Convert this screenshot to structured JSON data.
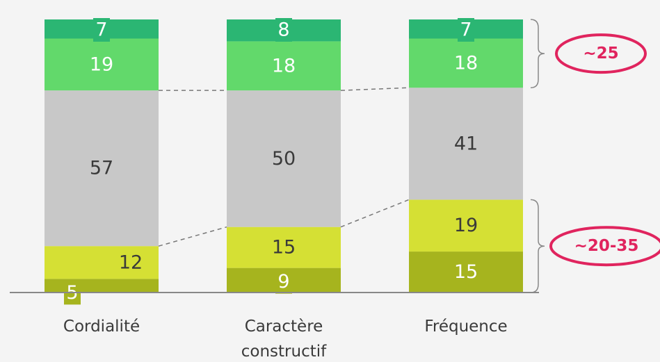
{
  "chart_data": {
    "type": "bar",
    "stacked": true,
    "categories": [
      [
        "Cordialité"
      ],
      [
        "Caractère",
        "constructif"
      ],
      [
        "Fréquence"
      ]
    ],
    "series": [
      {
        "key": "s1",
        "values": [
          5,
          9,
          15
        ],
        "color": "#a6b41e",
        "text_color": "#ffffff"
      },
      {
        "key": "s2",
        "values": [
          12,
          15,
          19
        ],
        "color": "#d5e034",
        "text_color": "#3a3a3a"
      },
      {
        "key": "s3",
        "values": [
          57,
          50,
          41
        ],
        "color": "#c8c8c8",
        "text_color": "#3a3a3a"
      },
      {
        "key": "s4",
        "values": [
          19,
          18,
          18
        ],
        "color": "#62d96b",
        "text_color": "#ffffff"
      },
      {
        "key": "s5",
        "values": [
          7,
          8,
          7
        ],
        "color": "#2bb673",
        "text_color": "#ffffff"
      }
    ],
    "callouts": [
      {
        "text": "~25",
        "brackets_series": [
          "s4",
          "s5"
        ],
        "bar": 2
      },
      {
        "text": "~20-35",
        "brackets_series": [
          "s1",
          "s2"
        ],
        "bar": 2
      }
    ],
    "grid": false,
    "legend": "none"
  },
  "colors": {
    "background": "#f4f4f4",
    "axis": "#888888",
    "callout": "#e0245e",
    "connector": "#777777"
  }
}
